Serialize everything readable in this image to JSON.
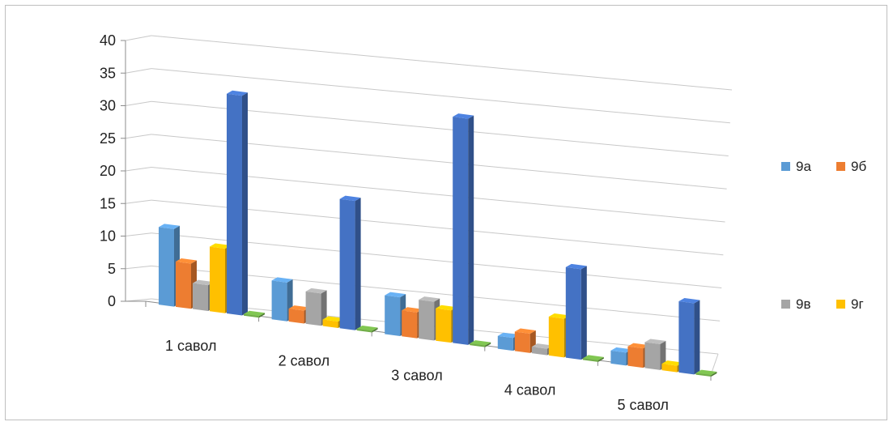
{
  "chart_data": {
    "type": "bar",
    "style": "3d-clustered-column",
    "categories": [
      "1 савол",
      "2 савол",
      "3 савол",
      "4 савол",
      "5 савол"
    ],
    "series": [
      {
        "name": "9а",
        "color": "#5b9bd5",
        "values": [
          12,
          6,
          6,
          2,
          2
        ]
      },
      {
        "name": "9б",
        "color": "#ed7d31",
        "values": [
          7,
          2,
          4,
          3,
          3
        ]
      },
      {
        "name": "9в",
        "color": "#a5a5a5",
        "values": [
          4,
          5,
          6,
          1,
          4
        ]
      },
      {
        "name": "9г",
        "color": "#ffc000",
        "values": [
          10,
          1,
          5,
          6,
          1
        ]
      },
      {
        "name": "",
        "color": "#4472c4",
        "values": [
          34,
          20,
          35,
          14,
          11
        ]
      },
      {
        "name": "",
        "color": "#70ad47",
        "values": [
          0,
          0,
          0,
          0,
          0
        ]
      }
    ],
    "yticks": [
      "0",
      "5",
      "10",
      "15",
      "20",
      "25",
      "30",
      "35",
      "40"
    ],
    "ylim": [
      0,
      40
    ],
    "grid": true,
    "legend_position": "right"
  }
}
